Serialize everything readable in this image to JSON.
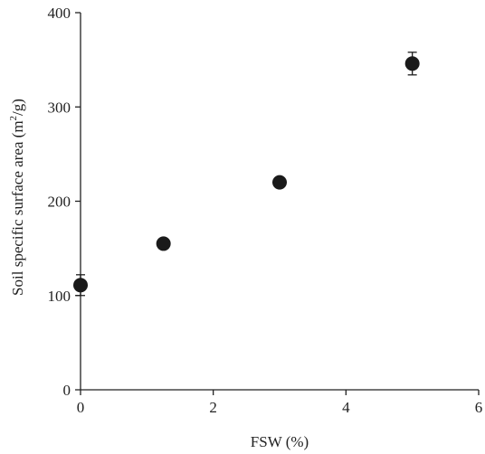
{
  "chart_data": {
    "type": "scatter",
    "xlabel": "FSW (%)",
    "ylabel_main": "Soil specific surface area (m",
    "ylabel_sup": "2",
    "ylabel_end": "/g)",
    "xlim": [
      0,
      6
    ],
    "ylim": [
      0,
      400
    ],
    "xticks": [
      0,
      2,
      4,
      6
    ],
    "yticks": [
      0,
      100,
      200,
      300,
      400
    ],
    "points": [
      {
        "x": 0,
        "y": 111,
        "err": 11
      },
      {
        "x": 1.25,
        "y": 155,
        "err": 4
      },
      {
        "x": 3,
        "y": 220,
        "err": 5
      },
      {
        "x": 5,
        "y": 346,
        "err": 12
      }
    ],
    "marker_color": "#1a1a1a",
    "grid": false,
    "legend": false
  }
}
